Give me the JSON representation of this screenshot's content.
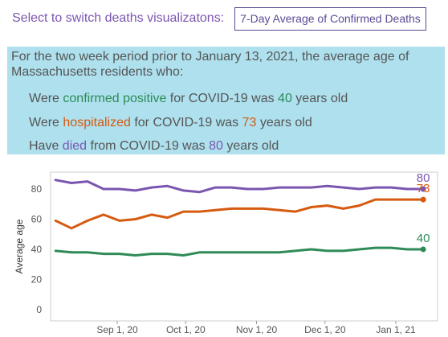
{
  "header": {
    "switch_label": "Select to switch deaths visualizatons:",
    "switch_button": "7-Day Average of Confirmed Deaths"
  },
  "info": {
    "intro": "For the two week period prior to January 13, 2021, the average age of Massachusetts residents who:",
    "lines": [
      {
        "pre": "Were ",
        "key": "confirmed positive",
        "mid": " for COVID-19 was ",
        "value": "40",
        "post": " years old"
      },
      {
        "pre": "Were ",
        "key": "hospitalized",
        "mid": " for COVID-19 was ",
        "value": "73",
        "post": " years old"
      },
      {
        "pre": "Have ",
        "key": "died",
        "mid": " from COVID-19 was ",
        "value": "80",
        "post": " years old"
      }
    ]
  },
  "colors": {
    "confirmed": "#2e8b57",
    "hospitalized": "#d65a0f",
    "died": "#7b56b1"
  },
  "chart_data": {
    "type": "line",
    "ylabel": "Average age",
    "ylim": [
      0,
      90
    ],
    "yticks": [
      0,
      20,
      40,
      60,
      80
    ],
    "xticks": [
      {
        "label": "Sep 1, 20",
        "date": "2020-09-01"
      },
      {
        "label": "Oct 1, 20",
        "date": "2020-10-01"
      },
      {
        "label": "Nov 1, 20",
        "date": "2020-11-01"
      },
      {
        "label": "Dec 1, 20",
        "date": "2020-12-01"
      },
      {
        "label": "Jan 1, 21",
        "date": "2021-01-01"
      }
    ],
    "x": [
      "2020-08-05",
      "2020-08-12",
      "2020-08-19",
      "2020-08-26",
      "2020-09-02",
      "2020-09-09",
      "2020-09-16",
      "2020-09-23",
      "2020-09-30",
      "2020-10-07",
      "2020-10-14",
      "2020-10-21",
      "2020-10-28",
      "2020-11-04",
      "2020-11-11",
      "2020-11-18",
      "2020-11-25",
      "2020-12-02",
      "2020-12-09",
      "2020-12-16",
      "2020-12-23",
      "2020-12-30",
      "2021-01-06",
      "2021-01-13"
    ],
    "series": [
      {
        "key": "died",
        "end_label": "80",
        "values": [
          86,
          84,
          85,
          80,
          80,
          79,
          81,
          82,
          79,
          78,
          81,
          81,
          80,
          80,
          81,
          81,
          81,
          82,
          81,
          80,
          81,
          81,
          80,
          80
        ]
      },
      {
        "key": "hospitalized",
        "end_label": "73",
        "values": [
          59,
          54,
          59,
          63,
          59,
          60,
          63,
          61,
          65,
          65,
          66,
          67,
          67,
          67,
          66,
          65,
          68,
          69,
          67,
          69,
          73,
          73,
          73,
          73
        ]
      },
      {
        "key": "confirmed",
        "end_label": "40",
        "values": [
          39,
          38,
          38,
          37,
          37,
          36,
          37,
          37,
          36,
          38,
          38,
          38,
          38,
          38,
          38,
          39,
          40,
          39,
          39,
          40,
          41,
          41,
          40,
          40
        ]
      }
    ]
  }
}
